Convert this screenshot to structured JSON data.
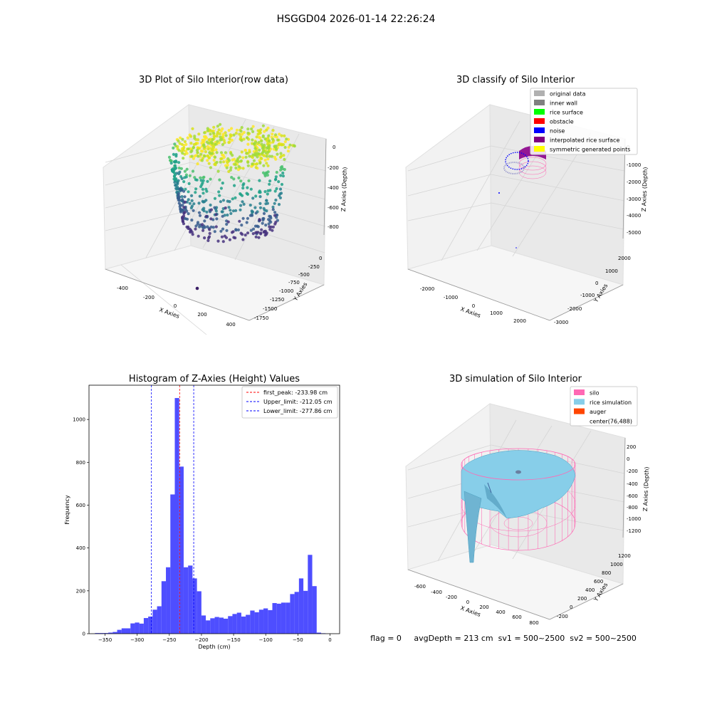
{
  "figure_title": "HSGGD04 2026-01-14 22:26:24",
  "status_text": "flag = 0     avgDepth = 213 cm  sv1 = 500~2500  sv2 = 500~2500",
  "chart_data": [
    {
      "type": "scatter",
      "projection": "3d",
      "title": "3D Plot of Silo Interior(row data)",
      "xlabel": "X Axies",
      "ylabel": "Y Axies",
      "zlabel": "Z Axies (Depth)",
      "xticks": [
        "-400",
        "-200",
        "0",
        "200",
        "400"
      ],
      "yticks": [
        "0",
        "-250",
        "-500",
        "-750",
        "-1000",
        "-1250",
        "-1500",
        "-1750"
      ],
      "zticks": [
        "0",
        "-200",
        "-400",
        "-600",
        "-800"
      ],
      "xlim": [
        -450,
        450
      ],
      "ylim": [
        -1850,
        50
      ],
      "zlim": [
        -900,
        20
      ],
      "colormap": "viridis",
      "grid": true
    },
    {
      "type": "scatter",
      "projection": "3d",
      "title": "3D classify of Silo Interior",
      "xlabel": "X Axies",
      "ylabel": "Y Axies",
      "zlabel": "Z Axies (Depth)",
      "xticks": [
        "-2000",
        "-1000",
        "0",
        "1000",
        "2000"
      ],
      "yticks": [
        "2000",
        "1000",
        "0",
        "-1000",
        "-2000",
        "-3000"
      ],
      "zticks": [
        "0",
        "-1000",
        "-2000",
        "-3000",
        "-4000",
        "-5000"
      ],
      "xlim": [
        -2500,
        2500
      ],
      "ylim": [
        -3200,
        2500
      ],
      "zlim": [
        -5300,
        200
      ],
      "grid": true,
      "legend_position": "top-right",
      "legend": [
        {
          "label": "original data",
          "color": "#b0b0b0"
        },
        {
          "label": "inner wall",
          "color": "#808080"
        },
        {
          "label": "rice surface",
          "color": "#00ff00"
        },
        {
          "label": "obstacle",
          "color": "#ff0000"
        },
        {
          "label": "noise",
          "color": "#0000ff"
        },
        {
          "label": "interpolated rice surface",
          "color": "#800080"
        },
        {
          "label": "symmetric generated points",
          "color": "#ffff00"
        }
      ]
    },
    {
      "type": "bar",
      "title": "Histogram of Z-Axies (Height) Values",
      "xlabel": "Depth (cm)",
      "ylabel": "Frequency",
      "xlim": [
        -375,
        15
      ],
      "ylim": [
        0,
        1160
      ],
      "xticks": [
        -350,
        -300,
        -250,
        -200,
        -150,
        -100,
        -50,
        0
      ],
      "yticks": [
        0,
        200,
        400,
        600,
        800,
        1000
      ],
      "bar_color": "#4444ff",
      "bin_width": 6.9,
      "bin_left": [
        -365.7,
        -358.8,
        -351.9,
        -345.0,
        -338.1,
        -331.2,
        -324.3,
        -317.4,
        -310.5,
        -303.6,
        -296.7,
        -289.8,
        -282.9,
        -276.0,
        -269.1,
        -262.2,
        -255.3,
        -248.4,
        -241.5,
        -234.6,
        -227.7,
        -220.8,
        -213.9,
        -207.0,
        -200.1,
        -193.2,
        -186.3,
        -179.4,
        -172.5,
        -165.6,
        -158.7,
        -151.8,
        -144.9,
        -138.0,
        -131.1,
        -124.2,
        -117.3,
        -110.4,
        -103.5,
        -96.6,
        -89.7,
        -82.8,
        -75.9,
        -69.0,
        -62.1,
        -55.2,
        -48.3,
        -41.4,
        -34.5,
        -27.6,
        -20.7,
        -13.8,
        -6.9
      ],
      "values": [
        3,
        3,
        3,
        5,
        8,
        18,
        25,
        25,
        48,
        52,
        47,
        73,
        80,
        112,
        128,
        245,
        310,
        650,
        1100,
        780,
        310,
        318,
        258,
        198,
        85,
        62,
        72,
        78,
        75,
        70,
        82,
        92,
        98,
        80,
        88,
        108,
        100,
        112,
        118,
        110,
        143,
        140,
        145,
        145,
        185,
        195,
        258,
        200,
        368,
        222,
        5,
        2,
        0
      ],
      "vlines": [
        {
          "label": "first_peak: -233.98 cm",
          "x": -233.98,
          "color": "#ff0000"
        },
        {
          "label": "Upper_limit: -212.05 cm",
          "x": -212.05,
          "color": "#0000ff"
        },
        {
          "label": "Lower_limit: -277.86 cm",
          "x": -277.86,
          "color": "#0000ff"
        }
      ],
      "legend_position": "top-right",
      "grid": false
    },
    {
      "type": "surface",
      "projection": "3d",
      "title": "3D simulation of Silo Interior",
      "xlabel": "X Axies",
      "ylabel": "Y Axies",
      "zlabel": "Z Axies (Depth)",
      "xticks": [
        "-600",
        "-400",
        "-200",
        "0",
        "200",
        "400",
        "600",
        "800"
      ],
      "yticks": [
        "1200",
        "1000",
        "800",
        "600",
        "400",
        "200",
        "0",
        "-200"
      ],
      "zticks": [
        "200",
        "0",
        "-200",
        "-400",
        "-600",
        "-800",
        "-1000",
        "-1200"
      ],
      "xlim": [
        -700,
        850
      ],
      "ylim": [
        -250,
        1300
      ],
      "zlim": [
        -1300,
        300
      ],
      "grid": true,
      "legend_position": "top-right",
      "legend": [
        {
          "label": "silo",
          "color": "#ff69b4"
        },
        {
          "label": "rice simulation",
          "color": "#87cee9"
        },
        {
          "label": "auger",
          "color": "#ff4500"
        },
        {
          "label": "center(76,488)",
          "color": "#ffffff"
        }
      ]
    }
  ]
}
